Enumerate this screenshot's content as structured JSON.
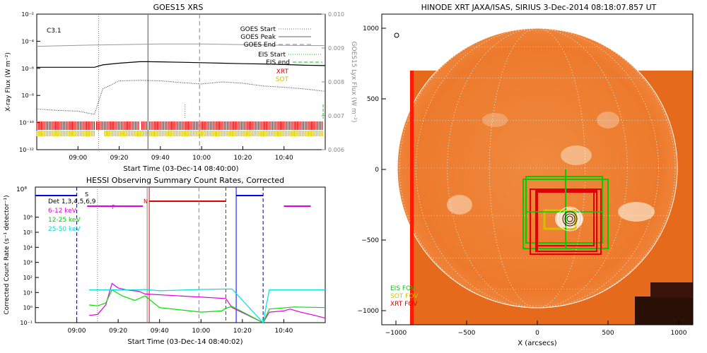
{
  "chart_data": [
    {
      "type": "line",
      "title": "GOES15 XRS",
      "xlabel": "Start Time (03-Dec-14 08:40:00)",
      "ylabel": "X-ray Flux (W m⁻²)",
      "ylabel_right": "GOES15 Lyx Flux (W m⁻²)",
      "xlim": [
        "08:40",
        "11:00"
      ],
      "xticks": [
        "09:00",
        "09:20",
        "09:40",
        "10:00",
        "10:20",
        "10:40"
      ],
      "ylim": [
        "1e-12",
        "1e-2"
      ],
      "yticks": [
        "10⁻¹²",
        "10⁻¹⁰",
        "10⁻⁸",
        "10⁻⁶",
        "10⁻⁴",
        "10⁻²"
      ],
      "ylim_right": [
        0.006,
        0.01
      ],
      "yticks_right": [
        "0.006",
        "0.007",
        "0.008",
        "0.009",
        "0.010"
      ],
      "class_label": "C3.1",
      "legend": [
        "GOES Start",
        "GOES Peak",
        "GOES End",
        "EIS Start",
        "EIS end",
        "XRT",
        "SOT"
      ],
      "markers": {
        "goes_start": "09:10",
        "goes_peak": "09:34",
        "goes_end": "09:59",
        "eis_start": "09:54",
        "eis_end": "10:59"
      },
      "series": [
        {
          "name": "long",
          "x": [
            "08:40",
            "08:50",
            "09:00",
            "09:08",
            "09:12",
            "09:20",
            "09:30",
            "09:34",
            "09:40",
            "09:50",
            "10:00",
            "10:10",
            "10:20",
            "10:30",
            "10:40",
            "10:50",
            "11:00"
          ],
          "values": [
            1.2e-06,
            1.2e-06,
            1.2e-06,
            1.2e-06,
            1.8e-06,
            2.4e-06,
            3.1e-06,
            3.1e-06,
            3e-06,
            2.8e-06,
            2.6e-06,
            2.4e-06,
            2.2e-06,
            2.1e-06,
            1.9e-06,
            1.7e-06,
            1.6e-06
          ]
        },
        {
          "name": "short",
          "x": [
            "08:40",
            "08:50",
            "09:00",
            "09:08",
            "09:12",
            "09:20",
            "09:30",
            "09:40",
            "09:50",
            "10:00",
            "10:10",
            "10:20",
            "10:30",
            "10:40",
            "10:50",
            "11:00"
          ],
          "values": [
            1e-09,
            8e-10,
            7e-10,
            4e-10,
            3e-08,
            1.2e-07,
            1.3e-07,
            1.2e-07,
            9e-08,
            7e-08,
            1e-07,
            8e-08,
            5e-08,
            4e-08,
            3e-08,
            2e-08
          ]
        },
        {
          "name": "lyx",
          "x": [
            "08:40",
            "09:00",
            "09:20",
            "09:40",
            "10:00",
            "10:20",
            "10:40",
            "11:00"
          ],
          "values": [
            0.00905,
            0.00908,
            0.0091,
            0.00912,
            0.00912,
            0.0091,
            0.00908,
            0.00907
          ]
        }
      ],
      "intervals": {
        "xrt": [
          [
            "08:40",
            "09:08"
          ],
          [
            "09:09",
            "09:30"
          ],
          [
            "09:31",
            "10:59"
          ]
        ],
        "sot": [
          [
            "08:40",
            "09:08"
          ],
          [
            "09:13",
            "10:59"
          ]
        ]
      },
      "colors": {
        "goes": "#000000",
        "eis": "#00cc00",
        "xrt": "#e00000",
        "sot": "#d4c000"
      }
    },
    {
      "type": "line",
      "title": "HESSI Observing Summary Count Rates, Corrected",
      "xlabel": "Start Time (03-Dec-14 08:40:02)",
      "ylabel": "Corrected Count Rate (s⁻¹ detector⁻¹)",
      "xlim": [
        "08:40",
        "11:00"
      ],
      "xticks": [
        "09:00",
        "09:20",
        "09:40",
        "10:00",
        "10:20",
        "10:40"
      ],
      "ylim": [
        0.1,
        100000000
      ],
      "yticks": [
        "10⁻¹",
        "10⁰",
        "10¹",
        "10²",
        "10³",
        "10⁴",
        "10⁵",
        "10⁶"
      ],
      "yticks_top": "10⁸",
      "legend": [
        "Det 1,3,4,5,6,9",
        "6-12 keV",
        "12-25 keV",
        "25-50 keV"
      ],
      "flags": {
        "s": "S",
        "f": "F",
        "n": "N"
      },
      "series": [
        {
          "name": "6-12 keV",
          "x": [
            "09:06",
            "09:10",
            "09:14",
            "09:17",
            "09:20",
            "09:24",
            "09:30",
            "09:33",
            "10:12",
            "10:15",
            "10:30",
            "10:33",
            "10:40",
            "10:43",
            "10:48",
            "10:55",
            "11:00"
          ],
          "values": [
            0.3,
            0.35,
            1.5,
            40,
            20,
            15,
            12,
            8,
            4,
            1,
            0.1,
            0.5,
            0.6,
            0.8,
            0.5,
            0.3,
            0.2
          ]
        },
        {
          "name": "12-25 keV",
          "x": [
            "09:06",
            "09:10",
            "09:14",
            "09:17",
            "09:22",
            "09:28",
            "09:33",
            "09:40",
            "10:00",
            "10:10",
            "10:12",
            "10:15",
            "10:30",
            "10:33",
            "10:45",
            "11:00"
          ],
          "values": [
            1.5,
            1.3,
            2,
            15,
            6,
            3,
            6,
            1,
            0.5,
            0.6,
            0.9,
            1.2,
            0.1,
            0.8,
            1.1,
            1.0
          ]
        },
        {
          "name": "25-50 keV",
          "x": [
            "09:06",
            "09:10",
            "09:14",
            "09:20",
            "09:30",
            "09:33",
            "09:40",
            "10:00",
            "10:12",
            "10:15",
            "10:30",
            "10:33",
            "10:45",
            "11:00"
          ],
          "values": [
            15,
            15,
            15,
            15,
            15,
            16,
            13,
            16,
            17,
            17,
            0.1,
            15,
            15,
            15
          ]
        }
      ],
      "attenuator_levels": {
        "blue_1": [
          "08:40",
          "09:00"
        ],
        "magenta": [
          "09:05",
          "09:32"
        ],
        "red": [
          "09:35",
          "10:12"
        ],
        "blue_2": [
          "10:17",
          "10:30"
        ],
        "magenta_2": [
          "10:40",
          "10:53"
        ]
      },
      "colors": {
        "det": "#000000",
        "low": "#e000e0",
        "mid": "#00e000",
        "high": "#00e0e0",
        "red": "#e00000",
        "blue": "#0000ff"
      }
    },
    {
      "type": "image",
      "title": "HINODE XRT JAXA/ISAS, SIRIUS   3-Dec-2014 08:18:07.857 UT",
      "xlabel": "X (arcsecs)",
      "ylabel": "",
      "xlim": [
        -1100,
        1100
      ],
      "ylim": [
        -1100,
        1100
      ],
      "xticks": [
        "−1000",
        "−500",
        "0",
        "500",
        "1000"
      ],
      "yticks": [
        "−1000",
        "−500",
        "0",
        "500",
        "1000"
      ],
      "legend": [
        "EIS FOV",
        "SOT FOV",
        "XRT FOV"
      ],
      "fov": {
        "xrt_box": [
          -900,
          -1100,
          1100,
          680
        ],
        "eis_boxes": [
          [
            -100,
            -560,
            500,
            -70
          ],
          [
            -80,
            -520,
            460,
            -50
          ]
        ],
        "xrt_boxes": [
          [
            -50,
            -600,
            450,
            -140
          ],
          [
            0,
            -580,
            420,
            -160
          ],
          [
            0,
            -540,
            400,
            -160
          ],
          [
            -10,
            -580,
            420,
            -150
          ]
        ],
        "sot_box": [
          50,
          -420,
          270,
          -290
        ],
        "eis_cross": [
          200,
          -300
        ],
        "contour_center": [
          210,
          -350
        ]
      },
      "colors": {
        "eis": "#00cc00",
        "sot": "#d4c000",
        "xrt": "#e00000"
      }
    }
  ]
}
